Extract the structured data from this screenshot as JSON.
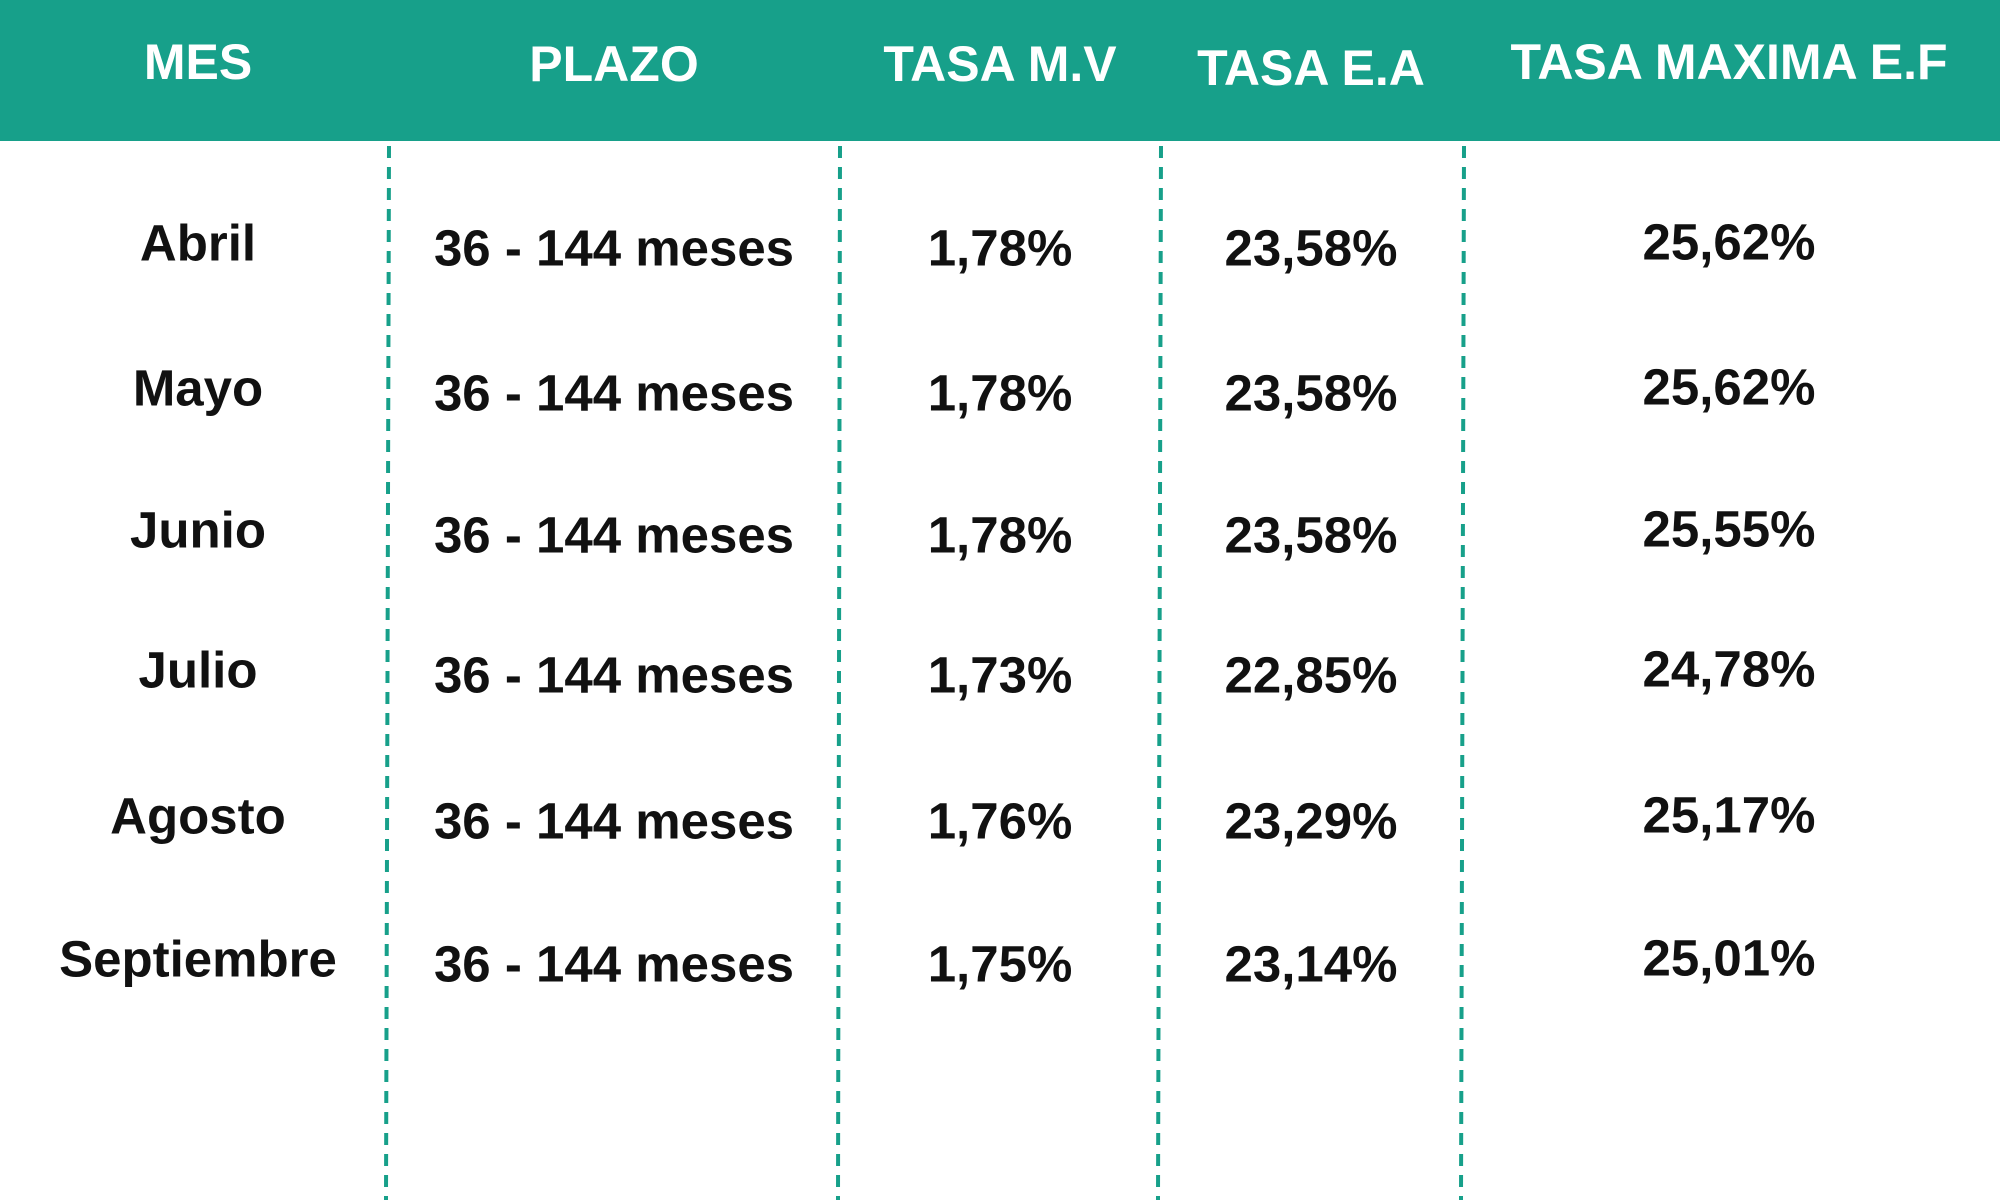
{
  "table": {
    "header": [
      "MES",
      "PLAZO",
      "TASA M.V",
      "TASA E.A",
      "TASA MAXIMA E.F"
    ],
    "rows": [
      [
        "Abril",
        "36 - 144 meses",
        "1,78%",
        "23,58%",
        "25,62%"
      ],
      [
        "Mayo",
        "36 - 144 meses",
        "1,78%",
        "23,58%",
        "25,62%"
      ],
      [
        "Junio",
        "36 - 144 meses",
        "1,78%",
        "23,58%",
        "25,55%"
      ],
      [
        "Julio",
        "36 - 144 meses",
        "1,73%",
        "22,85%",
        "24,78%"
      ],
      [
        "Agosto",
        "36 - 144 meses",
        "1,76%",
        "23,29%",
        "25,17%"
      ],
      [
        "Septiembre",
        "36 - 144 meses",
        "1,75%",
        "23,14%",
        "25,01%"
      ]
    ]
  }
}
